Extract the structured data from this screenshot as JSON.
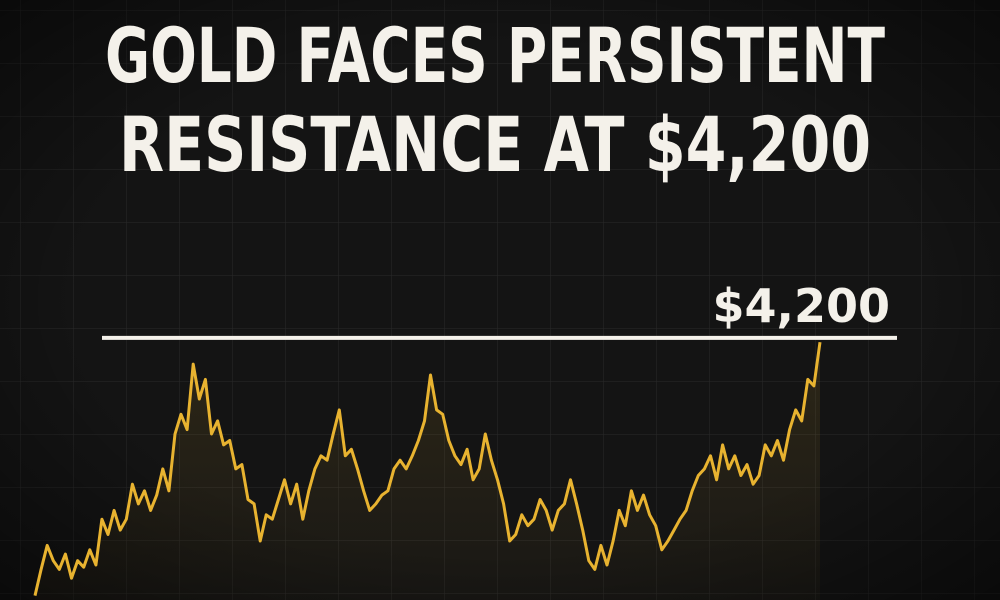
{
  "chart_data": {
    "type": "line",
    "title": [
      "GOLD FACES PERSISTENT",
      "RESISTANCE AT $4,200"
    ],
    "resistance": {
      "value": 4200,
      "label": "$4,200"
    },
    "color": "#e8b330",
    "ylim": [
      3600,
      4250
    ],
    "values": [
      3610,
      3670,
      3725,
      3690,
      3670,
      3705,
      3650,
      3690,
      3675,
      3715,
      3680,
      3785,
      3750,
      3805,
      3760,
      3785,
      3865,
      3820,
      3850,
      3805,
      3840,
      3900,
      3850,
      3980,
      4025,
      3990,
      4140,
      4060,
      4105,
      3980,
      4010,
      3955,
      3965,
      3900,
      3910,
      3830,
      3820,
      3735,
      3795,
      3785,
      3830,
      3875,
      3820,
      3865,
      3785,
      3850,
      3900,
      3930,
      3920,
      3980,
      4035,
      3930,
      3945,
      3900,
      3850,
      3805,
      3820,
      3840,
      3850,
      3900,
      3920,
      3900,
      3930,
      3965,
      4010,
      4115,
      4035,
      4025,
      3965,
      3930,
      3910,
      3945,
      3875,
      3900,
      3980,
      3920,
      3875,
      3820,
      3735,
      3750,
      3795,
      3770,
      3785,
      3830,
      3805,
      3760,
      3805,
      3820,
      3875,
      3820,
      3760,
      3690,
      3670,
      3725,
      3680,
      3735,
      3805,
      3770,
      3850,
      3805,
      3840,
      3795,
      3770,
      3715,
      3735,
      3760,
      3785,
      3805,
      3850,
      3885,
      3900,
      3930,
      3875,
      3955,
      3900,
      3930,
      3885,
      3910,
      3865,
      3885,
      3955,
      3930,
      3965,
      3920,
      3990,
      4035,
      4010,
      4105,
      4090,
      4190
    ]
  }
}
